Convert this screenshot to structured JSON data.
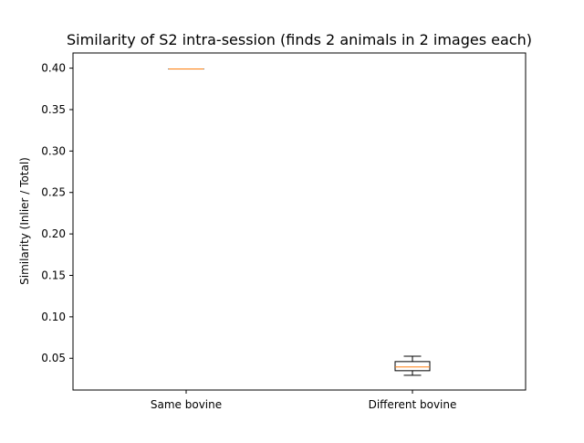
{
  "chart_data": {
    "type": "box",
    "title": "Similarity of S2 intra-session (finds 2 animals in 2 images each)",
    "xlabel": "",
    "ylabel": "Similarity  (Inlier / Total)",
    "categories": [
      "Same bovine",
      "Different bovine"
    ],
    "ylim": [
      0.0117,
      0.4183
    ],
    "yticks": [
      "0.05",
      "0.10",
      "0.15",
      "0.20",
      "0.25",
      "0.30",
      "0.35",
      "0.40"
    ],
    "boxes": [
      {
        "category": "Same bovine",
        "whisker_low": 0.399,
        "q1": 0.399,
        "median": 0.399,
        "q3": 0.399,
        "whisker_high": 0.399
      },
      {
        "category": "Different bovine",
        "whisker_low": 0.0295,
        "q1": 0.035,
        "median": 0.0395,
        "q3": 0.046,
        "whisker_high": 0.0525
      }
    ],
    "grid": false,
    "colors": {
      "box": "#000000",
      "median": "#ff7f0e"
    }
  }
}
